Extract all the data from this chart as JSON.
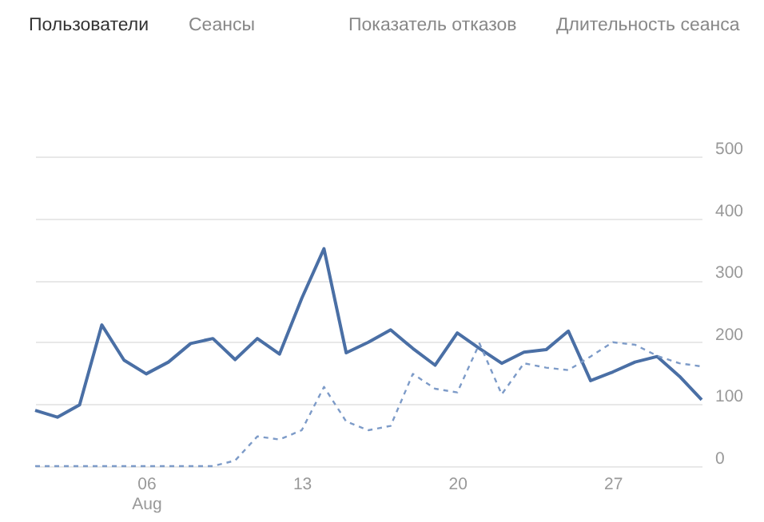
{
  "chart_data": {
    "type": "line",
    "annotations": [
      "Пользователи",
      "Сеансы",
      "Показатель отказов",
      "Длительность сеанса"
    ],
    "categories": [
      null,
      null,
      null,
      null,
      null,
      "06\nAug",
      null,
      null,
      null,
      null,
      null,
      null,
      "13",
      null,
      null,
      null,
      null,
      null,
      null,
      "20",
      null,
      null,
      null,
      null,
      null,
      null,
      "27",
      null,
      null,
      null,
      null
    ],
    "series": [
      {
        "color": "#4a6fa5",
        "line_style": "solid",
        "values": [
          90,
          79,
          99,
          228,
          171,
          149,
          168,
          198,
          206,
          172,
          206,
          181,
          271,
          351,
          183,
          200,
          220,
          190,
          163,
          215,
          190,
          166,
          184,
          188,
          218,
          138,
          152,
          168,
          177,
          145,
          107
        ]
      },
      {
        "color": "#7d9bc8",
        "line_style": "dashed",
        "values": [
          0,
          0,
          0,
          0,
          0,
          0,
          0,
          0,
          0,
          9,
          48,
          43,
          58,
          128,
          72,
          58,
          65,
          149,
          125,
          119,
          198,
          116,
          166,
          159,
          155,
          177,
          200,
          196,
          178,
          166,
          161
        ]
      }
    ],
    "ylim": [
      0,
      500
    ],
    "yticks": [
      0,
      100,
      200,
      300,
      400,
      500
    ],
    "grid": "y",
    "marker": "none",
    "legend": false
  }
}
